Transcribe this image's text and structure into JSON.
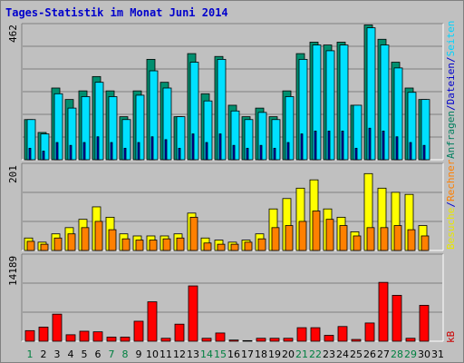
{
  "title": "Tages-Statistik im Monat Juni 2014",
  "panels": {
    "top": {
      "max_label": "462",
      "legend": [
        {
          "text": "Anfragen",
          "color": "#007f5f"
        },
        {
          "text": "/",
          "color": "#0000cc"
        },
        {
          "text": "Dateien",
          "color": "#0000cc"
        },
        {
          "text": "/",
          "color": "#0000cc"
        },
        {
          "text": "Seiten",
          "color": "#00d4ff"
        }
      ]
    },
    "middle": {
      "max_label": "201",
      "legend": [
        {
          "text": "Besuche",
          "color": "#e8e800"
        },
        {
          "text": "/",
          "color": "#0000cc"
        },
        {
          "text": "Rechner",
          "color": "#ff7f00"
        }
      ]
    },
    "bottom": {
      "max_label": "14189",
      "legend": [
        {
          "text": "kB",
          "color": "#cc0000"
        }
      ]
    }
  },
  "chart_data": {
    "type": "bar",
    "title": "Tages-Statistik im Monat Juni 2014",
    "categories": [
      "1",
      "2",
      "3",
      "4",
      "5",
      "6",
      "7",
      "8",
      "9",
      "10",
      "11",
      "12",
      "13",
      "14",
      "15",
      "16",
      "17",
      "18",
      "19",
      "20",
      "21",
      "22",
      "23",
      "24",
      "25",
      "26",
      "27",
      "28",
      "29",
      "30",
      "31"
    ],
    "weekend_days": [
      "1",
      "7",
      "8",
      "14",
      "15",
      "21",
      "22",
      "28",
      "29"
    ],
    "colors": {
      "anfragen": "#008f6f",
      "dateien": "#0000cc",
      "seiten": "#00e0ff",
      "besuche": "#ffff00",
      "rechner": "#ff8000",
      "kb": "#ff0000",
      "day_weekday": "#000000",
      "day_weekend": "#008040"
    },
    "panels": [
      {
        "name": "top",
        "ylim": [
          0,
          462
        ],
        "series": [
          {
            "name": "Anfragen",
            "values": [
              140,
              95,
              250,
              210,
              240,
              290,
              240,
              150,
              240,
              350,
              270,
              150,
              370,
              230,
              360,
              190,
              150,
              180,
              150,
              240,
              370,
              410,
              400,
              410,
              190,
              470,
              420,
              340,
              250,
              210,
              null
            ]
          },
          {
            "name": "Dateien",
            "values": [
              40,
              30,
              60,
              50,
              60,
              80,
              60,
              40,
              60,
              80,
              70,
              40,
              90,
              60,
              90,
              50,
              40,
              50,
              40,
              60,
              90,
              100,
              100,
              100,
              40,
              110,
              100,
              80,
              60,
              50,
              null
            ]
          },
          {
            "name": "Seiten",
            "values": [
              140,
              90,
              230,
              180,
              220,
              270,
              220,
              140,
              225,
              310,
              250,
              150,
              340,
              205,
              350,
              170,
              140,
              165,
              140,
              220,
              350,
              400,
              380,
              400,
              190,
              460,
              400,
              320,
              235,
              210,
              null
            ]
          }
        ]
      },
      {
        "name": "middle",
        "ylim": [
          0,
          201
        ],
        "series": [
          {
            "name": "Besuche",
            "values": [
              30,
              20,
              40,
              55,
              75,
              105,
              80,
              40,
              35,
              35,
              35,
              40,
              90,
              30,
              25,
              20,
              25,
              40,
              100,
              125,
              150,
              170,
              100,
              80,
              45,
              185,
              150,
              140,
              135,
              60,
              null
            ]
          },
          {
            "name": "Rechner",
            "values": [
              22,
              15,
              30,
              40,
              55,
              70,
              50,
              28,
              25,
              25,
              28,
              30,
              80,
              18,
              15,
              15,
              20,
              28,
              55,
              60,
              70,
              95,
              75,
              60,
              35,
              55,
              55,
              60,
              50,
              35,
              null
            ]
          }
        ]
      },
      {
        "name": "bottom",
        "ylim": [
          0,
          14189
        ],
        "series": [
          {
            "name": "kB",
            "values": [
              1800,
              2400,
              4600,
              1100,
              1700,
              1600,
              700,
              700,
              3400,
              6700,
              500,
              2900,
              9400,
              500,
              1400,
              200,
              100,
              500,
              500,
              500,
              2300,
              2300,
              1000,
              2500,
              300,
              3100,
              10000,
              7800,
              500,
              6100,
              null
            ]
          }
        ]
      }
    ]
  }
}
